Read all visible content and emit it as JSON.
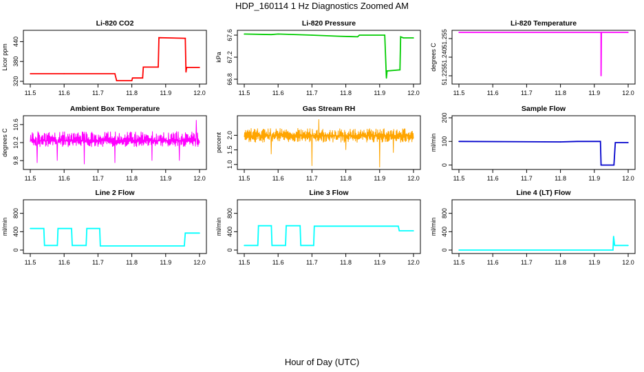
{
  "figure": {
    "title": "HDP_160114  1 Hz Diagnostics Zoomed AM",
    "xlabel": "Hour of Day (UTC)"
  },
  "chart_data": [
    {
      "type": "line",
      "title": "Li-820 CO2",
      "ylabel": "Licor ppm",
      "color": "#ff0000",
      "xlim": [
        11.5,
        12.0
      ],
      "xticks": [
        "11.5",
        "11.6",
        "11.7",
        "11.8",
        "11.9",
        "12.0"
      ],
      "ylim": [
        318,
        468
      ],
      "yticks": [
        "320",
        "380",
        "440"
      ],
      "series": [
        {
          "style": "step",
          "points": [
            [
              11.5,
              343
            ],
            [
              11.6,
              343
            ],
            [
              11.75,
              343
            ],
            [
              11.755,
              322
            ],
            [
              11.8,
              322
            ],
            [
              11.802,
              330
            ],
            [
              11.832,
              330
            ],
            [
              11.834,
              363
            ],
            [
              11.878,
              363
            ],
            [
              11.88,
              452
            ],
            [
              11.958,
              450
            ],
            [
              11.96,
              348
            ],
            [
              11.962,
              362
            ],
            [
              12.0,
              362
            ]
          ]
        }
      ]
    },
    {
      "type": "line",
      "title": "Li-820 Pressure",
      "ylabel": "kPa",
      "color": "#00cc00",
      "xlim": [
        11.5,
        12.0
      ],
      "xticks": [
        "11.5",
        "11.6",
        "11.7",
        "11.8",
        "11.9",
        "12.0"
      ],
      "ylim": [
        66.75,
        67.65
      ],
      "yticks": [
        "66.8",
        "67.2",
        "67.6"
      ],
      "series": [
        {
          "style": "step",
          "points": [
            [
              11.5,
              67.62
            ],
            [
              11.58,
              67.61
            ],
            [
              11.6,
              67.62
            ],
            [
              11.7,
              67.6
            ],
            [
              11.78,
              67.58
            ],
            [
              11.835,
              67.57
            ],
            [
              11.84,
              67.6
            ],
            [
              11.915,
              67.6
            ],
            [
              11.92,
              66.82
            ],
            [
              11.922,
              66.95
            ],
            [
              11.96,
              66.97
            ],
            [
              11.962,
              67.57
            ],
            [
              11.97,
              67.55
            ],
            [
              12.0,
              67.55
            ]
          ]
        }
      ]
    },
    {
      "type": "line",
      "title": "Li-820 Temperature",
      "ylabel": "degrees C",
      "color": "#ff00ff",
      "xlim": [
        11.5,
        12.0
      ],
      "xticks": [
        "11.5",
        "11.6",
        "11.7",
        "11.8",
        "11.9",
        "12.0"
      ],
      "ylim": [
        51.22,
        51.26
      ],
      "yticks": [
        "51.225",
        "51.240",
        "51.255"
      ],
      "series": [
        {
          "style": "spike",
          "baseline": 51.26,
          "points": [
            [
              11.5,
              51.26
            ],
            [
              11.92,
              51.26
            ],
            [
              11.92,
              51.225
            ],
            [
              11.921,
              51.26
            ],
            [
              12.0,
              51.26
            ]
          ]
        }
      ]
    },
    {
      "type": "line",
      "title": "Ambient Box Temperature",
      "ylabel": "degrees C",
      "color": "#ff00ff",
      "xlim": [
        11.5,
        12.0
      ],
      "xticks": [
        "11.5",
        "11.6",
        "11.7",
        "11.8",
        "11.9",
        "12.0"
      ],
      "ylim": [
        9.65,
        10.75
      ],
      "yticks": [
        "9.8",
        "10.2",
        "10.6"
      ],
      "series": [
        {
          "style": "noise",
          "center": 10.25,
          "low": 10.1,
          "high": 10.45,
          "outliers": [
            [
              11.52,
              9.75
            ],
            [
              11.58,
              9.8
            ],
            [
              11.66,
              9.72
            ],
            [
              11.75,
              9.75
            ],
            [
              11.86,
              9.8
            ],
            [
              11.94,
              9.8
            ],
            [
              11.99,
              10.7
            ]
          ]
        }
      ]
    },
    {
      "type": "line",
      "title": "Gas Stream RH",
      "ylabel": "percent",
      "color": "#ffa500",
      "xlim": [
        11.5,
        12.0
      ],
      "xticks": [
        "11.5",
        "11.6",
        "11.7",
        "11.8",
        "11.9",
        "12.0"
      ],
      "ylim": [
        0.9,
        2.6
      ],
      "yticks": [
        "1.0",
        "1.5",
        "2.0"
      ],
      "series": [
        {
          "style": "noise",
          "center": 2.0,
          "low": 1.75,
          "high": 2.25,
          "outliers": [
            [
              11.58,
              1.35
            ],
            [
              11.7,
              0.95
            ],
            [
              11.72,
              2.55
            ],
            [
              11.8,
              1.5
            ],
            [
              11.9,
              0.9
            ],
            [
              11.94,
              1.4
            ]
          ]
        }
      ]
    },
    {
      "type": "line",
      "title": "Sample Flow",
      "ylabel": "ml/min",
      "color": "#0000cc",
      "xlim": [
        11.5,
        12.0
      ],
      "xticks": [
        "11.5",
        "11.6",
        "11.7",
        "11.8",
        "11.9",
        "12.0"
      ],
      "ylim": [
        -10,
        200
      ],
      "yticks": [
        "0",
        "100",
        "200"
      ],
      "series": [
        {
          "style": "step",
          "points": [
            [
              11.5,
              100
            ],
            [
              11.8,
              98
            ],
            [
              11.85,
              100
            ],
            [
              11.918,
              100
            ],
            [
              11.92,
              0
            ],
            [
              11.958,
              0
            ],
            [
              11.962,
              95
            ],
            [
              12.0,
              95
            ]
          ]
        }
      ]
    },
    {
      "type": "line",
      "title": "Line 2 Flow",
      "ylabel": "ml/min",
      "color": "#00ffff",
      "xlim": [
        11.5,
        12.0
      ],
      "xticks": [
        "11.5",
        "11.6",
        "11.7",
        "11.8",
        "11.9",
        "12.0"
      ],
      "ylim": [
        -30,
        1050
      ],
      "yticks": [
        "0",
        "400",
        "800"
      ],
      "series": [
        {
          "style": "step",
          "points": [
            [
              11.5,
              470
            ],
            [
              11.54,
              470
            ],
            [
              11.542,
              100
            ],
            [
              11.58,
              100
            ],
            [
              11.582,
              470
            ],
            [
              11.622,
              470
            ],
            [
              11.624,
              100
            ],
            [
              11.665,
              100
            ],
            [
              11.667,
              470
            ],
            [
              11.705,
              470
            ],
            [
              11.707,
              90
            ],
            [
              11.955,
              90
            ],
            [
              11.958,
              370
            ],
            [
              12.0,
              370
            ]
          ]
        }
      ]
    },
    {
      "type": "line",
      "title": "Line 3 Flow",
      "ylabel": "ml/min",
      "color": "#00ffff",
      "xlim": [
        11.5,
        12.0
      ],
      "xticks": [
        "11.5",
        "11.6",
        "11.7",
        "11.8",
        "11.9",
        "12.0"
      ],
      "ylim": [
        -30,
        1050
      ],
      "yticks": [
        "0",
        "400",
        "800"
      ],
      "series": [
        {
          "style": "step",
          "points": [
            [
              11.5,
              100
            ],
            [
              11.54,
              100
            ],
            [
              11.542,
              530
            ],
            [
              11.58,
              530
            ],
            [
              11.582,
              100
            ],
            [
              11.622,
              100
            ],
            [
              11.624,
              530
            ],
            [
              11.665,
              530
            ],
            [
              11.667,
              100
            ],
            [
              11.705,
              100
            ],
            [
              11.707,
              520
            ],
            [
              11.955,
              520
            ],
            [
              11.958,
              420
            ],
            [
              12.0,
              420
            ]
          ]
        }
      ]
    },
    {
      "type": "line",
      "title": "Line 4 (LT) Flow",
      "ylabel": "ml/min",
      "color": "#00ffff",
      "xlim": [
        11.5,
        12.0
      ],
      "xticks": [
        "11.5",
        "11.6",
        "11.7",
        "11.8",
        "11.9",
        "12.0"
      ],
      "ylim": [
        -30,
        1050
      ],
      "yticks": [
        "0",
        "400",
        "800"
      ],
      "series": [
        {
          "style": "step",
          "points": [
            [
              11.5,
              0
            ],
            [
              11.955,
              0
            ],
            [
              11.957,
              300
            ],
            [
              11.96,
              100
            ],
            [
              12.0,
              100
            ]
          ]
        }
      ]
    }
  ]
}
